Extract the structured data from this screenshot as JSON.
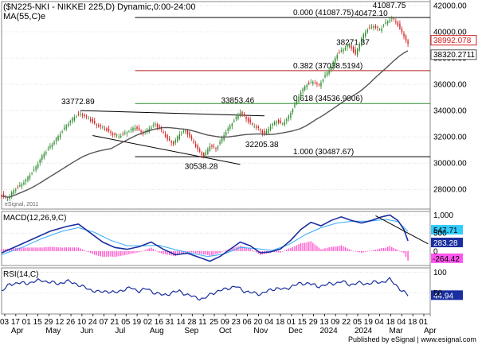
{
  "chart_data": {
    "type": "candlestick",
    "title": "($N225-NKI - NIKKEI 225,D) Dynamic,0:00-24:00",
    "ma_label": "MA(55,C)e",
    "watermark": "eSignal, 2011",
    "footer": "Published by eSignal | www.esignal.com",
    "colors": {
      "up": "#2e8b2e",
      "down": "#d11f1f",
      "ma": "#555555",
      "trend": "#000000",
      "fib_red": "#b22222",
      "fib_green": "#2e8b2e",
      "macd": "#1a2ea0",
      "signal": "#33aaff",
      "hist": "#ff55cc",
      "rsi": "#1a2ea0",
      "grid": "#cccccc"
    },
    "price_panel": {
      "ylim": [
        26500,
        42300
      ],
      "y_ticks": [
        {
          "v": 28000,
          "label": "28000.00"
        },
        {
          "v": 30000,
          "label": "30000.00"
        },
        {
          "v": 32000,
          "label": "32000.00"
        },
        {
          "v": 34000,
          "label": "34000.00"
        },
        {
          "v": 36000,
          "label": "36000.00"
        },
        {
          "v": 38000,
          "label": "38000.00"
        },
        {
          "v": 40000,
          "label": "40000.00"
        },
        {
          "v": 42000,
          "label": "42000.00"
        }
      ],
      "last_price": {
        "v": 38992.078,
        "label": "38992.078"
      },
      "ma_value": {
        "v": 38320.2711,
        "label": "38320.2711"
      },
      "price_path": [
        [
          0,
          27500
        ],
        [
          3,
          27300
        ],
        [
          6,
          27900
        ],
        [
          9,
          28300
        ],
        [
          12,
          28700
        ],
        [
          16,
          29500
        ],
        [
          20,
          30500
        ],
        [
          24,
          31300
        ],
        [
          28,
          32000
        ],
        [
          32,
          32900
        ],
        [
          36,
          33500
        ],
        [
          39,
          33772.89
        ],
        [
          42,
          33500
        ],
        [
          46,
          33000
        ],
        [
          50,
          32700
        ],
        [
          54,
          32300
        ],
        [
          58,
          32000
        ],
        [
          62,
          32400
        ],
        [
          66,
          32700
        ],
        [
          70,
          32300
        ],
        [
          73,
          32600
        ],
        [
          76,
          33000
        ],
        [
          79,
          32500
        ],
        [
          82,
          31800
        ],
        [
          85,
          31500
        ],
        [
          88,
          32200
        ],
        [
          91,
          32500
        ],
        [
          94,
          31800
        ],
        [
          97,
          31000
        ],
        [
          100,
          30538.28
        ],
        [
          103,
          31300
        ],
        [
          106,
          31100
        ],
        [
          109,
          31900
        ],
        [
          112,
          32600
        ],
        [
          115,
          33300
        ],
        [
          118,
          33853.46
        ],
        [
          121,
          33400
        ],
        [
          124,
          32900
        ],
        [
          127,
          32600
        ],
        [
          130,
          32205.38
        ],
        [
          133,
          32800
        ],
        [
          136,
          33200
        ],
        [
          139,
          33000
        ],
        [
          142,
          33500
        ],
        [
          145,
          34500
        ],
        [
          148,
          35400
        ],
        [
          151,
          36000
        ],
        [
          154,
          36200
        ],
        [
          157,
          35900
        ],
        [
          160,
          36700
        ],
        [
          163,
          37300
        ],
        [
          166,
          38300
        ],
        [
          169,
          38700
        ],
        [
          172,
          39000
        ],
        [
          175,
          38271.37
        ],
        [
          178,
          39500
        ],
        [
          181,
          40200
        ],
        [
          184,
          40472.1
        ],
        [
          187,
          40100
        ],
        [
          190,
          40700
        ],
        [
          193,
          41087.75
        ],
        [
          196,
          40500
        ],
        [
          199,
          39700
        ],
        [
          201,
          38992.078
        ]
      ],
      "labels": [
        {
          "text": "33772.89",
          "x": 39,
          "y": 33772.89
        },
        {
          "text": "33853.46",
          "x": 118,
          "y": 33853.46
        },
        {
          "text": "32205.38",
          "x": 130,
          "y": 32205.38
        },
        {
          "text": "30538.28",
          "x": 100,
          "y": 30538.28
        },
        {
          "text": "38271.37",
          "x": 175,
          "y": 38271.37
        },
        {
          "text": "40472.10",
          "x": 184,
          "y": 40472.1
        },
        {
          "text": "41087.75",
          "x": 193,
          "y": 41087.75
        }
      ],
      "fib_levels": [
        {
          "label": "0.000 (41087.75)",
          "value": 41087.75,
          "color": "#000000"
        },
        {
          "label": "0.382 (37038.5194)",
          "value": 37038.5194,
          "color": "#b22222"
        },
        {
          "label": "0.618 (34536.9006)",
          "value": 34536.9006,
          "color": "#2e8b2e"
        },
        {
          "label": "1.000 (30487.67)",
          "value": 30487.67,
          "color": "#000000"
        }
      ],
      "trendlines": [
        {
          "x1": 39,
          "y1": 34000,
          "x2": 130,
          "y2": 33600
        },
        {
          "x1": 45,
          "y1": 32100,
          "x2": 118,
          "y2": 29900
        }
      ]
    },
    "macd_panel": {
      "label": "MACD(12,26,9,C)",
      "ylim": [
        -400,
        1100
      ],
      "y_ticks": [
        {
          "v": 0,
          "label": "0"
        },
        {
          "v": 500,
          "label": "500"
        },
        {
          "v": 1000,
          "label": "1,000"
        }
      ],
      "macd_value": {
        "v": 283.28,
        "label": "283.28"
      },
      "signal_value": {
        "v": 547.71,
        "label": "547.71"
      },
      "hist_value": {
        "v": -264.42,
        "label": "-264.42"
      },
      "macd_path": [
        [
          0,
          -50
        ],
        [
          8,
          150
        ],
        [
          16,
          350
        ],
        [
          24,
          550
        ],
        [
          32,
          680
        ],
        [
          38,
          750
        ],
        [
          44,
          500
        ],
        [
          50,
          250
        ],
        [
          56,
          100
        ],
        [
          62,
          50
        ],
        [
          68,
          120
        ],
        [
          74,
          250
        ],
        [
          80,
          50
        ],
        [
          86,
          -100
        ],
        [
          92,
          -60
        ],
        [
          98,
          -180
        ],
        [
          103,
          -280
        ],
        [
          108,
          -150
        ],
        [
          113,
          50
        ],
        [
          118,
          250
        ],
        [
          123,
          150
        ],
        [
          128,
          -50
        ],
        [
          133,
          -20
        ],
        [
          138,
          60
        ],
        [
          143,
          300
        ],
        [
          148,
          600
        ],
        [
          153,
          800
        ],
        [
          158,
          700
        ],
        [
          163,
          850
        ],
        [
          168,
          950
        ],
        [
          173,
          850
        ],
        [
          178,
          780
        ],
        [
          183,
          850
        ],
        [
          188,
          950
        ],
        [
          192,
          1000
        ],
        [
          196,
          850
        ],
        [
          199,
          600
        ],
        [
          201,
          283.28
        ]
      ],
      "signal_path": [
        [
          0,
          -100
        ],
        [
          10,
          100
        ],
        [
          20,
          350
        ],
        [
          30,
          550
        ],
        [
          38,
          650
        ],
        [
          46,
          520
        ],
        [
          54,
          300
        ],
        [
          62,
          150
        ],
        [
          70,
          150
        ],
        [
          78,
          160
        ],
        [
          86,
          40
        ],
        [
          94,
          -60
        ],
        [
          102,
          -150
        ],
        [
          110,
          -80
        ],
        [
          118,
          100
        ],
        [
          126,
          70
        ],
        [
          134,
          20
        ],
        [
          142,
          180
        ],
        [
          150,
          450
        ],
        [
          158,
          650
        ],
        [
          166,
          780
        ],
        [
          174,
          830
        ],
        [
          182,
          830
        ],
        [
          190,
          880
        ],
        [
          196,
          820
        ],
        [
          201,
          547.71
        ]
      ],
      "divergence_line": {
        "x1": 185,
        "y1": 980,
        "x2": 211,
        "y2": 200
      }
    },
    "rsi_panel": {
      "label": "RSI(14,C)",
      "ylim": [
        0,
        110
      ],
      "y_ticks": [
        {
          "v": 50,
          "label": "50"
        },
        {
          "v": 100,
          "label": "100"
        }
      ],
      "rsi_value": {
        "v": 44.94,
        "label": "44.94"
      },
      "rsi_path": [
        [
          0,
          55
        ],
        [
          4,
          70
        ],
        [
          8,
          75
        ],
        [
          12,
          72
        ],
        [
          16,
          78
        ],
        [
          20,
          80
        ],
        [
          24,
          76
        ],
        [
          28,
          72
        ],
        [
          32,
          78
        ],
        [
          36,
          74
        ],
        [
          40,
          65
        ],
        [
          44,
          58
        ],
        [
          48,
          52
        ],
        [
          52,
          55
        ],
        [
          56,
          50
        ],
        [
          60,
          58
        ],
        [
          64,
          62
        ],
        [
          68,
          55
        ],
        [
          72,
          60
        ],
        [
          76,
          50
        ],
        [
          80,
          45
        ],
        [
          84,
          50
        ],
        [
          88,
          55
        ],
        [
          92,
          45
        ],
        [
          96,
          40
        ],
        [
          100,
          35
        ],
        [
          104,
          50
        ],
        [
          108,
          55
        ],
        [
          112,
          62
        ],
        [
          116,
          65
        ],
        [
          120,
          55
        ],
        [
          124,
          50
        ],
        [
          128,
          48
        ],
        [
          132,
          55
        ],
        [
          136,
          62
        ],
        [
          140,
          58
        ],
        [
          144,
          68
        ],
        [
          148,
          72
        ],
        [
          152,
          74
        ],
        [
          156,
          65
        ],
        [
          160,
          70
        ],
        [
          164,
          72
        ],
        [
          168,
          78
        ],
        [
          172,
          70
        ],
        [
          176,
          74
        ],
        [
          180,
          72
        ],
        [
          184,
          75
        ],
        [
          188,
          76
        ],
        [
          192,
          82
        ],
        [
          195,
          70
        ],
        [
          198,
          55
        ],
        [
          201,
          44.94
        ]
      ]
    },
    "x_axis": {
      "range": [
        0,
        212
      ],
      "day_ticks": [
        {
          "x": 0,
          "label": "03"
        },
        {
          "x": 5,
          "label": "17"
        },
        {
          "x": 10,
          "label": "01"
        },
        {
          "x": 15,
          "label": "15"
        },
        {
          "x": 20,
          "label": "29"
        },
        {
          "x": 25,
          "label": "12"
        },
        {
          "x": 30,
          "label": "26"
        },
        {
          "x": 35,
          "label": "10"
        },
        {
          "x": 40,
          "label": "24"
        },
        {
          "x": 45,
          "label": "07"
        },
        {
          "x": 50,
          "label": "21"
        },
        {
          "x": 55,
          "label": "05"
        },
        {
          "x": 60,
          "label": "19"
        },
        {
          "x": 65,
          "label": "02"
        },
        {
          "x": 70,
          "label": "16"
        },
        {
          "x": 75,
          "label": "31"
        },
        {
          "x": 80,
          "label": "14"
        },
        {
          "x": 85,
          "label": "28"
        },
        {
          "x": 90,
          "label": "11"
        },
        {
          "x": 95,
          "label": "25"
        },
        {
          "x": 100,
          "label": "09"
        },
        {
          "x": 105,
          "label": "23"
        },
        {
          "x": 110,
          "label": "06"
        },
        {
          "x": 115,
          "label": "20"
        },
        {
          "x": 120,
          "label": "04"
        },
        {
          "x": 125,
          "label": "18"
        },
        {
          "x": 130,
          "label": "01"
        },
        {
          "x": 135,
          "label": "15"
        },
        {
          "x": 140,
          "label": "29"
        },
        {
          "x": 145,
          "label": "13"
        },
        {
          "x": 150,
          "label": "09"
        },
        {
          "x": 155,
          "label": "22"
        },
        {
          "x": 160,
          "label": "05"
        },
        {
          "x": 165,
          "label": "19"
        },
        {
          "x": 170,
          "label": "04"
        },
        {
          "x": 175,
          "label": "18"
        },
        {
          "x": 180,
          "label": "04"
        },
        {
          "x": 185,
          "label": "18"
        },
        {
          "x": 190,
          "label": "01"
        }
      ],
      "month_ticks": [
        {
          "x": 2,
          "label": "Apr"
        },
        {
          "x": 13,
          "label": "May"
        },
        {
          "x": 24,
          "label": "Jun"
        },
        {
          "x": 35,
          "label": "Jul"
        },
        {
          "x": 46,
          "label": "Aug"
        },
        {
          "x": 57,
          "label": "Sep"
        },
        {
          "x": 68,
          "label": "Oct"
        },
        {
          "x": 79,
          "label": "Nov"
        },
        {
          "x": 90,
          "label": "Dec"
        },
        {
          "x": 100,
          "label": "2024"
        },
        {
          "x": 111,
          "label": "2024"
        },
        {
          "x": 122,
          "label": "Mar"
        },
        {
          "x": 133,
          "label": "Apr"
        }
      ]
    }
  }
}
